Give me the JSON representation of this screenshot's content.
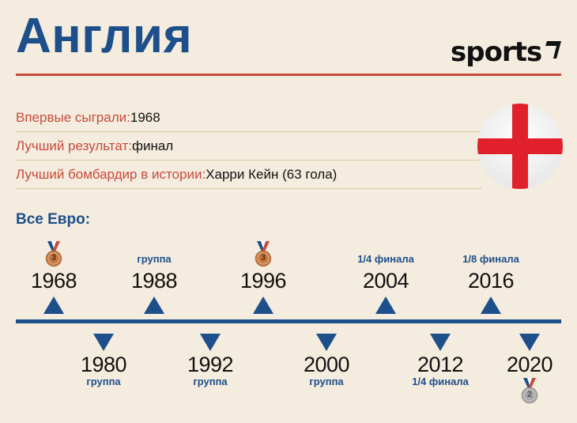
{
  "title": "Англия",
  "logo_text": "sports",
  "info": [
    {
      "key": "Впервые сыграли:",
      "value": " 1968"
    },
    {
      "key": "Лучший результат:",
      "value": " финал"
    },
    {
      "key": "Лучший бомбардир в истории:",
      "value": " Харри Кейн (63 гола)"
    }
  ],
  "section_title": "Все Евро:",
  "timeline": {
    "top": [
      {
        "year": "1968",
        "note": "",
        "medal": "3"
      },
      {
        "year": "1988",
        "note": "группа",
        "medal": ""
      },
      {
        "year": "1996",
        "note": "",
        "medal": "3"
      },
      {
        "year": "2004",
        "note": "1/4 финала",
        "medal": ""
      },
      {
        "year": "2016",
        "note": "1/8 финала",
        "medal": ""
      }
    ],
    "bottom": [
      {
        "year": "1980",
        "note": "группа",
        "medal": ""
      },
      {
        "year": "1992",
        "note": "группа",
        "medal": ""
      },
      {
        "year": "2000",
        "note": "группа",
        "medal": ""
      },
      {
        "year": "2012",
        "note": "1/4 финала",
        "medal": ""
      },
      {
        "year": "2020",
        "note": "",
        "medal": "2"
      }
    ]
  },
  "colors": {
    "background": "#f4ecde",
    "accent_blue": "#1d4f8b",
    "accent_red": "#c94a3c",
    "bronze": "#c8773f",
    "silver": "#a8a8a8"
  },
  "icons": [
    "england-flag-icon",
    "bronze-medal-icon",
    "silver-medal-icon",
    "timeline-arrow-icon"
  ]
}
